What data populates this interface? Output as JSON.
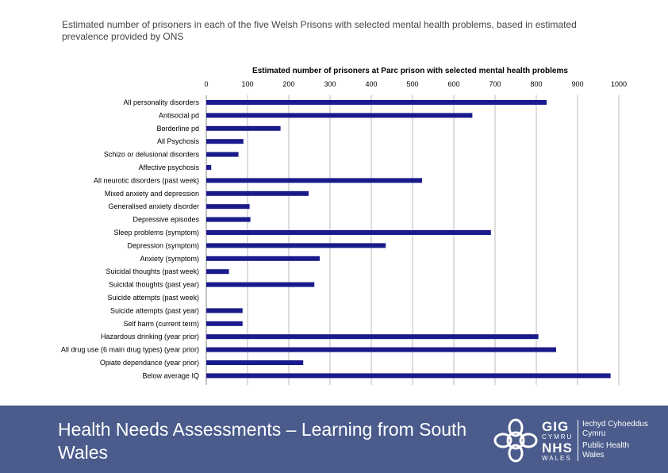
{
  "slide": {
    "caption": "Estimated number of prisoners in each of the five Welsh Prisons with selected mental health problems, based in estimated prevalence provided by ONS",
    "footer_title": "Health Needs Assessments – Learning from South Wales"
  },
  "logo": {
    "gig": "GIG",
    "cymru": "CYMRU",
    "nhs": "NHS",
    "wales": "WALES",
    "org_lines": [
      "Iechyd Cyhoeddus",
      "Cymru",
      "Public Health",
      "Wales"
    ]
  },
  "colors": {
    "bar": "#1a1a8c",
    "footer": "#4a5b8c",
    "grid": "#bbbbbb"
  },
  "chart_data": {
    "type": "bar",
    "orientation": "horizontal",
    "title": "Estimated number  of prisoners at Parc prison with selected mental health problems",
    "xlim": [
      0,
      1000
    ],
    "xticks": [
      0,
      100,
      200,
      300,
      400,
      500,
      600,
      700,
      800,
      900,
      1000
    ],
    "grid": true,
    "x_axis_position": "top",
    "categories": [
      "All personality disorders",
      "Antisocial pd",
      "Borderline pd",
      "All Psychosis",
      "Schizo or delusional disorders",
      "Affective psychosis",
      "All neurotic disorders (past week)",
      "Mixed anxiety and depression",
      "Generalised anxiety disorder",
      "Depressive episodes",
      "Sleep problems (symptom)",
      "Depression (symptom)",
      "Anxiety (symptom)",
      "Suicidal thoughts (past week)",
      "Suicidal thoughts (past year)",
      "Suicide attempts (past week)",
      "Suicide attempts (past year)",
      "Self harm (current term)",
      "Hazardous drinking (year prior)",
      "All drug use (6 main drug types) (year prior)",
      "Opiate dependance (year prior)",
      "Below average IQ"
    ],
    "values": [
      825,
      645,
      180,
      90,
      78,
      12,
      523,
      248,
      105,
      107,
      690,
      435,
      275,
      55,
      262,
      0,
      88,
      88,
      805,
      848,
      235,
      980
    ]
  }
}
